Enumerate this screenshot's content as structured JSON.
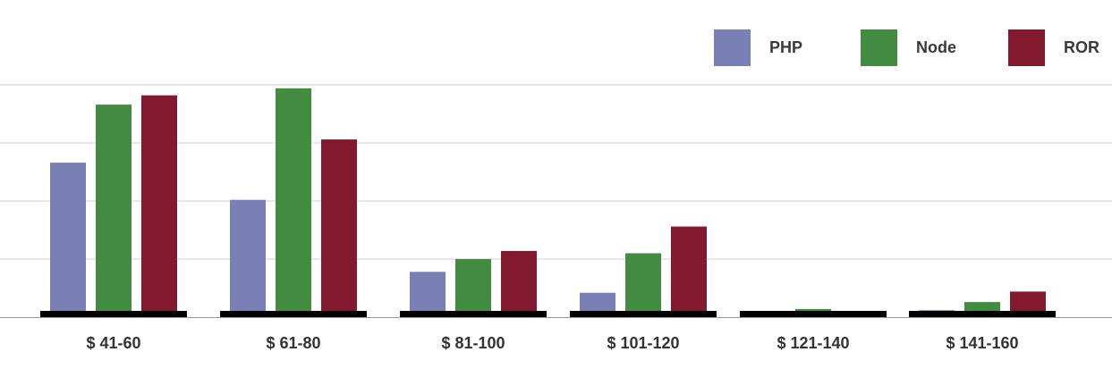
{
  "chart_data": {
    "type": "bar",
    "categories": [
      "$ 41-60",
      "$ 61-80",
      "$ 81-100",
      "$ 101-120",
      "$ 121-140",
      "$ 141-160"
    ],
    "series": [
      {
        "name": "PHP",
        "color": "#7a7fb6",
        "values": [
          133,
          101,
          39,
          21,
          4,
          6
        ]
      },
      {
        "name": "Node",
        "color": "#438b41",
        "values": [
          183,
          197,
          50,
          55,
          7,
          13
        ]
      },
      {
        "name": "ROR",
        "color": "#83192e",
        "values": [
          191,
          153,
          57,
          78,
          5,
          22
        ]
      }
    ],
    "ylim": [
      0,
      200
    ],
    "y_gridlines": [
      50,
      100,
      150,
      200
    ],
    "y_tick_labels_shown": false,
    "grid": true,
    "legend_position": "top-right",
    "title": "",
    "xlabel": "",
    "ylabel": ""
  }
}
